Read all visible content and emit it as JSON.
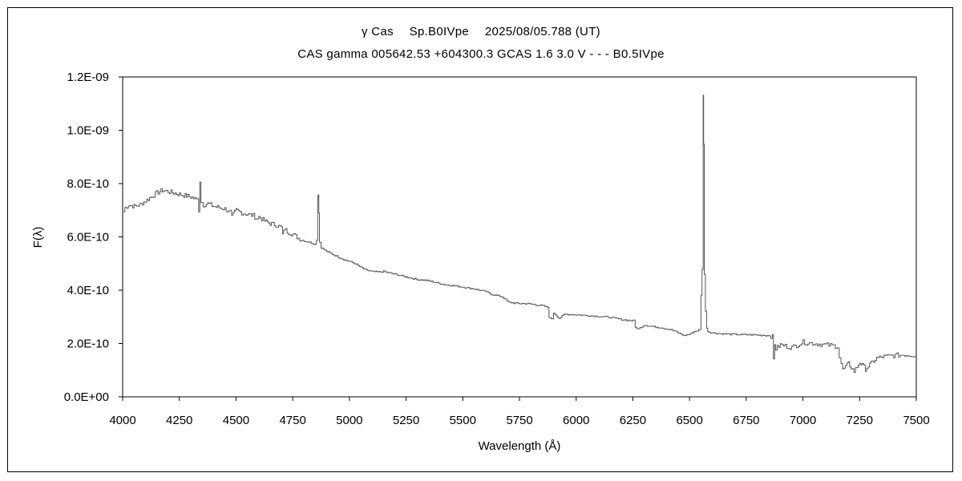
{
  "chart_data": {
    "type": "line",
    "title": "γ Cas　 Sp.B0IVpe　 2025/08/05.788 (UT)",
    "subtitle": "CAS gamma 005642.53 +604300.3 GCAS 1.6 3.0 V - - - B0.5IVpe",
    "xlabel": "Wavelength (Å)",
    "ylabel": "F(λ)",
    "xlim": [
      4000,
      7500
    ],
    "ylim": [
      0,
      1.2e-09
    ],
    "x_ticks": [
      4000,
      4250,
      4500,
      4750,
      5000,
      5250,
      5500,
      5750,
      6000,
      6250,
      6500,
      6750,
      7000,
      7250,
      7500
    ],
    "x_tick_labels": [
      "4000",
      "4250",
      "4500",
      "4750",
      "5000",
      "5250",
      "5500",
      "5750",
      "6000",
      "6250",
      "6500",
      "6750",
      "7000",
      "7250",
      "7500"
    ],
    "y_ticks": [
      0,
      2e-10,
      4e-10,
      6e-10,
      8e-10,
      1e-09,
      1.2e-09
    ],
    "y_tick_labels": [
      "0.0E+00",
      "2.0E-10",
      "4.0E-10",
      "6.0E-10",
      "8.0E-10",
      "1.0E-09",
      "1.2E-09"
    ],
    "grid": false,
    "series": [
      {
        "color": "#555555",
        "x": [
          4000,
          4010,
          4025,
          4050,
          4075,
          4100,
          4125,
          4150,
          4175,
          4200,
          4225,
          4250,
          4275,
          4300,
          4325,
          4335,
          4340,
          4345,
          4355,
          4375,
          4400,
          4425,
          4450,
          4470,
          4480,
          4500,
          4525,
          4550,
          4575,
          4590,
          4600,
          4625,
          4650,
          4675,
          4700,
          4705,
          4710,
          4725,
          4750,
          4775,
          4800,
          4825,
          4850,
          4855,
          4860,
          4862,
          4865,
          4868,
          4875,
          4900,
          4925,
          4950,
          4975,
          5000,
          5025,
          5050,
          5075,
          5100,
          5125,
          5150,
          5175,
          5200,
          5225,
          5250,
          5275,
          5300,
          5325,
          5350,
          5375,
          5400,
          5425,
          5450,
          5475,
          5500,
          5525,
          5550,
          5575,
          5600,
          5625,
          5650,
          5675,
          5700,
          5725,
          5750,
          5775,
          5800,
          5825,
          5850,
          5875,
          5880,
          5890,
          5900,
          5925,
          5950,
          6000,
          6050,
          6100,
          6150,
          6200,
          6250,
          6260,
          6275,
          6300,
          6325,
          6350,
          6375,
          6400,
          6425,
          6450,
          6475,
          6500,
          6520,
          6540,
          6550,
          6555,
          6560,
          6562,
          6565,
          6570,
          6575,
          6580,
          6600,
          6625,
          6650,
          6700,
          6750,
          6800,
          6850,
          6865,
          6870,
          6875,
          6880,
          6900,
          6950,
          7000,
          7050,
          7100,
          7150,
          7160,
          7175,
          7200,
          7225,
          7250,
          7275,
          7300,
          7325,
          7350,
          7400,
          7450,
          7500
        ],
        "y": [
          6.95e-10,
          7.1e-10,
          7.2e-10,
          7.15e-10,
          7.2e-10,
          7.35e-10,
          7.5e-10,
          7.65e-10,
          7.75e-10,
          7.7e-10,
          7.65e-10,
          7.6e-10,
          7.55e-10,
          7.5e-10,
          7.4e-10,
          7e-10,
          8.1e-10,
          7.3e-10,
          7.2e-10,
          7.25e-10,
          7.15e-10,
          7.1e-10,
          7.05e-10,
          6.95e-10,
          6.75e-10,
          7e-10,
          6.9e-10,
          6.85e-10,
          6.8e-10,
          6.7e-10,
          6.75e-10,
          6.6e-10,
          6.5e-10,
          6.45e-10,
          6.35e-10,
          6.05e-10,
          6.3e-10,
          6.2e-10,
          6.1e-10,
          5.95e-10,
          5.85e-10,
          5.8e-10,
          5.72e-10,
          5.9e-10,
          7.5e-10,
          7.6e-10,
          6.9e-10,
          5.8e-10,
          5.6e-10,
          5.45e-10,
          5.35e-10,
          5.25e-10,
          5.15e-10,
          5.08e-10,
          5e-10,
          4.85e-10,
          4.75e-10,
          4.7e-10,
          4.68e-10,
          4.7e-10,
          4.65e-10,
          4.6e-10,
          4.55e-10,
          4.5e-10,
          4.45e-10,
          4.4e-10,
          4.38e-10,
          4.35e-10,
          4.3e-10,
          4.25e-10,
          4.2e-10,
          4.18e-10,
          4.15e-10,
          4.12e-10,
          4.08e-10,
          4.05e-10,
          4e-10,
          3.95e-10,
          3.85e-10,
          3.8e-10,
          3.75e-10,
          3.55e-10,
          3.52e-10,
          3.5e-10,
          3.5e-10,
          3.48e-10,
          3.45e-10,
          3.42e-10,
          3.35e-10,
          3e-10,
          2.9e-10,
          3.15e-10,
          2.95e-10,
          3.1e-10,
          3.08e-10,
          3.05e-10,
          3.02e-10,
          2.98e-10,
          2.9e-10,
          2.85e-10,
          2.6e-10,
          2.55e-10,
          2.7e-10,
          2.65e-10,
          2.62e-10,
          2.6e-10,
          2.55e-10,
          2.5e-10,
          2.4e-10,
          2.3e-10,
          2.35e-10,
          2.45e-10,
          2.5e-10,
          3.8e-10,
          4.8e-10,
          1.13e-09,
          9.5e-10,
          4.6e-10,
          3.2e-10,
          2.6e-10,
          2.45e-10,
          2.4e-10,
          2.38e-10,
          2.36e-10,
          2.34e-10,
          2.33e-10,
          2.32e-10,
          2.3e-10,
          2.25e-10,
          1.4e-10,
          2e-10,
          1.8e-10,
          1.95e-10,
          1.85e-10,
          2.05e-10,
          2e-10,
          1.95e-10,
          1.9e-10,
          1.5e-10,
          1e-10,
          1.25e-10,
          9.5e-11,
          1.3e-10,
          1.05e-10,
          1.25e-10,
          1.45e-10,
          1.5e-10,
          1.55e-10,
          1.58e-10,
          1.55e-10
        ]
      }
    ]
  }
}
